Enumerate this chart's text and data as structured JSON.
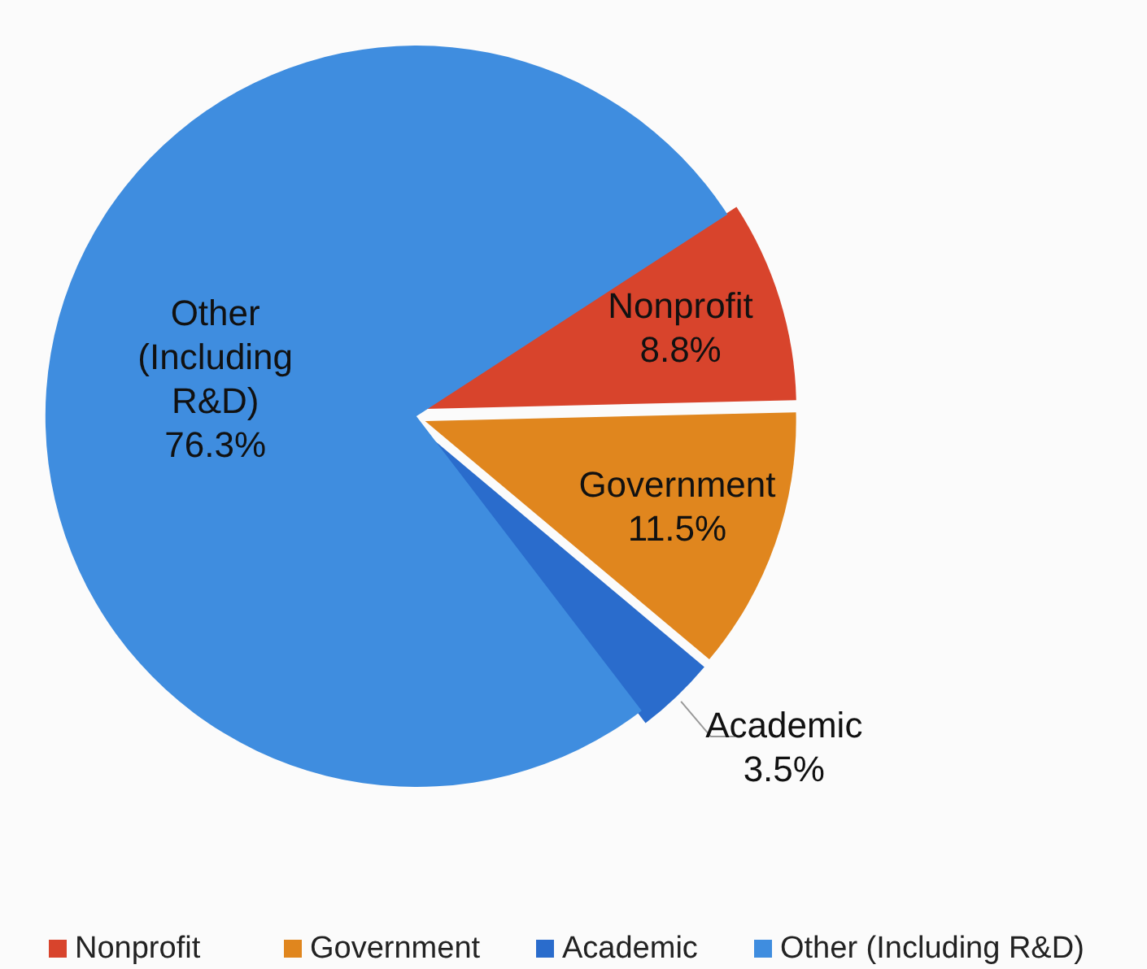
{
  "chart_data": {
    "type": "pie",
    "categories": [
      "Nonprofit",
      "Government",
      "Academic",
      "Other (Including R&D)"
    ],
    "values": [
      8.8,
      11.5,
      3.5,
      76.3
    ],
    "colors": [
      "#d8442c",
      "#e0861e",
      "#2a6ccc",
      "#3f8ddf"
    ],
    "value_labels": [
      "Nonprofit\n8.8%",
      "Government\n11.5%",
      "Academic\n3.5%",
      "Other\n(Including\nR&D)\n76.3%"
    ],
    "legend": "bottom"
  }
}
